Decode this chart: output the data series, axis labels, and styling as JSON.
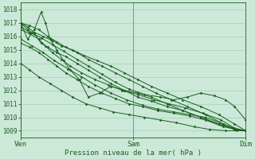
{
  "bg_color": "#cce8d8",
  "grid_color": "#99ccb0",
  "line_color": "#1a6020",
  "xlabel": "Pression niveau de la mer( hPa )",
  "xtick_labels": [
    "Ven",
    "Sam",
    "Dim"
  ],
  "xtick_positions": [
    0,
    0.5,
    1.0
  ],
  "ylim": [
    1008.5,
    1018.5
  ],
  "ytick_positions": [
    1009,
    1010,
    1011,
    1012,
    1013,
    1014,
    1015,
    1016,
    1017,
    1018
  ],
  "series": [
    {
      "x": [
        0.0,
        0.03,
        0.06,
        0.09,
        0.12,
        0.16,
        0.2,
        0.25,
        0.3,
        0.35,
        0.4,
        0.46,
        0.52,
        0.58,
        0.65,
        0.72,
        0.8,
        0.88,
        0.95,
        1.0
      ],
      "y": [
        1017.0,
        1016.5,
        1016.2,
        1015.5,
        1015.2,
        1014.8,
        1014.5,
        1014.0,
        1013.5,
        1013.0,
        1012.5,
        1012.0,
        1011.5,
        1011.2,
        1010.8,
        1010.5,
        1010.0,
        1009.5,
        1009.1,
        1009.0
      ]
    },
    {
      "x": [
        0.0,
        0.03,
        0.06,
        0.1,
        0.14,
        0.18,
        0.23,
        0.28,
        0.34,
        0.4,
        0.46,
        0.52,
        0.58,
        0.65,
        0.72,
        0.8,
        0.88,
        0.95,
        1.0
      ],
      "y": [
        1017.0,
        1016.7,
        1016.3,
        1016.0,
        1015.7,
        1015.3,
        1015.0,
        1014.6,
        1014.2,
        1013.8,
        1013.3,
        1012.8,
        1012.3,
        1011.8,
        1011.3,
        1010.8,
        1010.2,
        1009.5,
        1009.0
      ]
    },
    {
      "x": [
        0.0,
        0.04,
        0.08,
        0.12,
        0.16,
        0.2,
        0.25,
        0.3,
        0.36,
        0.42,
        0.48,
        0.54,
        0.6,
        0.67,
        0.74,
        0.82,
        0.9,
        0.96,
        1.0
      ],
      "y": [
        1017.0,
        1016.8,
        1016.5,
        1016.0,
        1015.6,
        1015.2,
        1014.8,
        1014.3,
        1013.8,
        1013.3,
        1012.8,
        1012.3,
        1011.8,
        1011.3,
        1010.8,
        1010.2,
        1009.5,
        1009.1,
        1009.0
      ]
    },
    {
      "x": [
        0.0,
        0.03,
        0.06,
        0.09,
        0.11,
        0.13,
        0.16,
        0.19,
        0.22,
        0.26,
        0.3,
        0.35,
        0.4,
        0.46,
        0.52,
        0.58,
        0.65,
        0.72,
        0.8,
        0.88,
        0.95,
        1.0
      ],
      "y": [
        1017.0,
        1015.8,
        1016.5,
        1017.8,
        1017.0,
        1015.8,
        1015.0,
        1014.2,
        1013.5,
        1012.8,
        1011.5,
        1011.8,
        1012.3,
        1012.0,
        1011.8,
        1011.5,
        1011.0,
        1010.5,
        1010.0,
        1009.5,
        1009.1,
        1009.0
      ]
    },
    {
      "x": [
        0.0,
        0.04,
        0.08,
        0.11,
        0.14,
        0.18,
        0.22,
        0.27,
        0.33,
        0.39,
        0.45,
        0.52,
        0.59,
        0.66,
        0.73,
        0.81,
        0.89,
        0.95,
        1.0
      ],
      "y": [
        1016.5,
        1016.2,
        1015.8,
        1015.3,
        1014.8,
        1014.3,
        1013.8,
        1013.3,
        1012.8,
        1012.4,
        1012.0,
        1011.7,
        1011.3,
        1011.0,
        1010.7,
        1010.3,
        1009.8,
        1009.2,
        1009.0
      ]
    },
    {
      "x": [
        0.0,
        0.04,
        0.08,
        0.12,
        0.16,
        0.2,
        0.25,
        0.3,
        0.36,
        0.42,
        0.48,
        0.54,
        0.61,
        0.68,
        0.75,
        0.82,
        0.9,
        0.96,
        1.0
      ],
      "y": [
        1015.5,
        1015.2,
        1014.8,
        1014.3,
        1013.8,
        1013.3,
        1012.8,
        1012.3,
        1011.8,
        1011.4,
        1011.0,
        1010.8,
        1010.5,
        1010.3,
        1010.1,
        1009.8,
        1009.3,
        1009.1,
        1009.0
      ]
    },
    {
      "x": [
        0.0,
        0.04,
        0.08,
        0.13,
        0.18,
        0.23,
        0.29,
        0.35,
        0.41,
        0.48,
        0.55,
        0.62,
        0.69,
        0.77,
        0.84,
        0.91,
        0.96,
        1.0
      ],
      "y": [
        1014.0,
        1013.5,
        1013.0,
        1012.5,
        1012.0,
        1011.5,
        1011.0,
        1010.7,
        1010.4,
        1010.2,
        1010.0,
        1009.8,
        1009.6,
        1009.3,
        1009.1,
        1009.0,
        1009.0,
        1009.0
      ]
    },
    {
      "x": [
        0.0,
        0.04,
        0.09,
        0.14,
        0.19,
        0.25,
        0.3,
        0.36,
        0.42,
        0.48,
        0.55,
        0.62,
        0.68,
        0.74,
        0.8,
        0.86,
        0.91,
        0.95,
        1.0
      ],
      "y": [
        1016.7,
        1016.3,
        1015.9,
        1015.4,
        1014.9,
        1014.3,
        1013.8,
        1013.2,
        1012.6,
        1012.1,
        1011.7,
        1011.5,
        1011.3,
        1011.5,
        1011.8,
        1011.6,
        1011.3,
        1010.8,
        1009.8
      ]
    },
    {
      "x": [
        0.0,
        0.05,
        0.1,
        0.15,
        0.21,
        0.27,
        0.33,
        0.4,
        0.47,
        0.54,
        0.61,
        0.68,
        0.75,
        0.82,
        0.9,
        0.96,
        1.0
      ],
      "y": [
        1015.8,
        1015.3,
        1014.8,
        1014.2,
        1013.6,
        1013.0,
        1012.4,
        1011.8,
        1011.3,
        1010.9,
        1010.6,
        1010.4,
        1010.2,
        1010.0,
        1009.5,
        1009.1,
        1009.0
      ]
    }
  ]
}
